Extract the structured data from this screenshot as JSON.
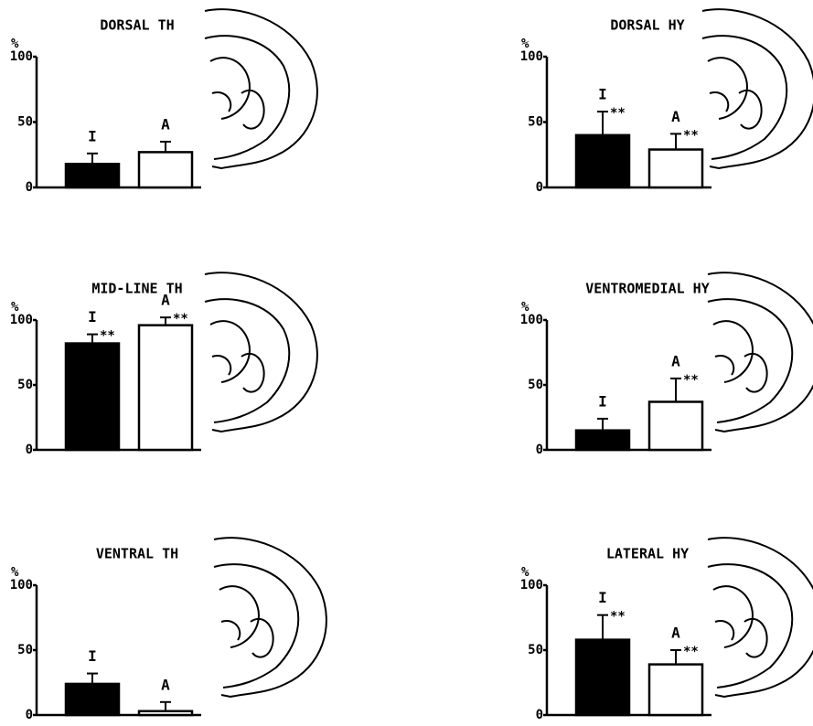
{
  "chart_data": [
    {
      "type": "bar",
      "title": "DORSAL TH",
      "ylabel": "%",
      "categories": [
        "I",
        "A"
      ],
      "values": [
        18,
        27
      ],
      "errors": [
        8,
        8
      ],
      "significance": [
        null,
        null
      ],
      "colors": [
        "#000000",
        "#ffffff"
      ],
      "ylim": [
        0,
        100
      ],
      "yticks": [
        0,
        50,
        100
      ]
    },
    {
      "type": "bar",
      "title": "DORSAL HY",
      "ylabel": "%",
      "categories": [
        "I",
        "A"
      ],
      "values": [
        40,
        29
      ],
      "errors": [
        18,
        12
      ],
      "significance": [
        "**",
        "**"
      ],
      "colors": [
        "#000000",
        "#ffffff"
      ],
      "ylim": [
        0,
        100
      ],
      "yticks": [
        0,
        50,
        100
      ]
    },
    {
      "type": "bar",
      "title": "MID-LINE TH",
      "ylabel": "%",
      "categories": [
        "I",
        "A"
      ],
      "values": [
        82,
        96
      ],
      "errors": [
        7,
        6
      ],
      "significance": [
        "**",
        "**"
      ],
      "colors": [
        "#000000",
        "#ffffff"
      ],
      "ylim": [
        0,
        100
      ],
      "yticks": [
        0,
        50,
        100
      ]
    },
    {
      "type": "bar",
      "title": "VENTROMEDIAL HY",
      "ylabel": "%",
      "categories": [
        "I",
        "A"
      ],
      "values": [
        15,
        37
      ],
      "errors": [
        9,
        18
      ],
      "significance": [
        null,
        "**"
      ],
      "colors": [
        "#000000",
        "#ffffff"
      ],
      "ylim": [
        0,
        100
      ],
      "yticks": [
        0,
        50,
        100
      ]
    },
    {
      "type": "bar",
      "title": "VENTRAL TH",
      "ylabel": "%",
      "categories": [
        "I",
        "A"
      ],
      "values": [
        24,
        3
      ],
      "errors": [
        8,
        7
      ],
      "significance": [
        null,
        null
      ],
      "colors": [
        "#000000",
        "#ffffff"
      ],
      "ylim": [
        0,
        100
      ],
      "yticks": [
        0,
        50,
        100
      ]
    },
    {
      "type": "bar",
      "title": "LATERAL HY",
      "ylabel": "%",
      "categories": [
        "I",
        "A"
      ],
      "values": [
        58,
        39
      ],
      "errors": [
        19,
        11
      ],
      "significance": [
        "**",
        "**"
      ],
      "colors": [
        "#000000",
        "#ffffff"
      ],
      "ylim": [
        0,
        100
      ],
      "yticks": [
        0,
        50,
        100
      ]
    }
  ]
}
